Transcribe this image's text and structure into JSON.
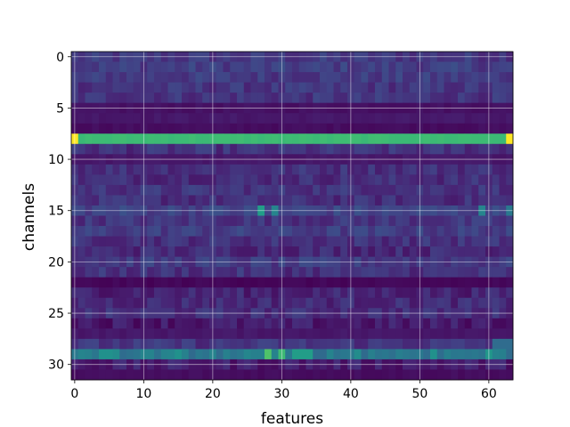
{
  "chart_data": {
    "type": "heatmap",
    "title": "",
    "xlabel": "features",
    "ylabel": "channels",
    "n_cols": 64,
    "n_rows": 32,
    "xlim": [
      -0.5,
      63.5
    ],
    "ylim": [
      31.5,
      -0.5
    ],
    "x_ticks": [
      0,
      10,
      20,
      30,
      40,
      50,
      60
    ],
    "y_ticks": [
      0,
      5,
      10,
      15,
      20,
      25,
      30
    ],
    "grid": true,
    "colormap": "viridis",
    "value_range": [
      0,
      1
    ],
    "row_base_values": [
      0.16,
      0.18,
      0.17,
      0.15,
      0.15,
      0.03,
      0.05,
      0.02,
      0.68,
      0.14,
      0.05,
      0.14,
      0.13,
      0.15,
      0.13,
      0.2,
      0.15,
      0.18,
      0.14,
      0.12,
      0.17,
      0.14,
      0.0,
      0.1,
      0.12,
      0.13,
      0.07,
      0.05,
      0.15,
      0.4,
      0.08,
      0.02
    ],
    "highlights": [
      {
        "row": 8,
        "col": 0,
        "value": 1.0
      },
      {
        "row": 8,
        "col": 63,
        "value": 1.0
      },
      {
        "row": 15,
        "col": 27,
        "value": 0.55
      },
      {
        "row": 15,
        "col": 29,
        "value": 0.45
      },
      {
        "row": 15,
        "col": 59,
        "value": 0.45
      },
      {
        "row": 15,
        "col": 63,
        "value": 0.4
      },
      {
        "row": 29,
        "col": 28,
        "value": 0.72
      },
      {
        "row": 29,
        "col": 30,
        "value": 0.68
      },
      {
        "row": 29,
        "col": 32,
        "value": 0.55
      },
      {
        "row": 29,
        "col": 33,
        "value": 0.55
      },
      {
        "row": 29,
        "col": 34,
        "value": 0.55
      },
      {
        "row": 29,
        "col": 52,
        "value": 0.5
      },
      {
        "row": 29,
        "col": 60,
        "value": 0.52
      },
      {
        "row": 29,
        "col": 4,
        "value": 0.5
      },
      {
        "row": 29,
        "col": 5,
        "value": 0.5
      },
      {
        "row": 29,
        "col": 6,
        "value": 0.48
      },
      {
        "row": 29,
        "col": 15,
        "value": 0.5
      },
      {
        "row": 29,
        "col": 41,
        "value": 0.48
      },
      {
        "row": 28,
        "col": 61,
        "value": 0.35
      },
      {
        "row": 28,
        "col": 62,
        "value": 0.35
      },
      {
        "row": 28,
        "col": 63,
        "value": 0.35
      }
    ]
  }
}
